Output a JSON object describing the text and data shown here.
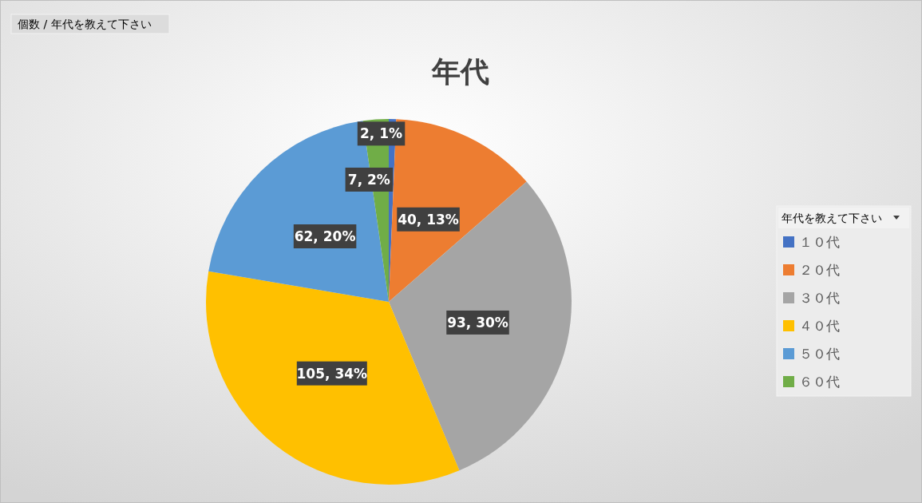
{
  "chart_data": {
    "type": "pie",
    "title": "年代",
    "annotations": [
      "個数 / 年代を教えて下さい"
    ],
    "legend_title": "年代を教えて下さい",
    "legend": "right",
    "categories": [
      "１０代",
      "２０代",
      "３０代",
      "４０代",
      "５０代",
      "６０代"
    ],
    "values": [
      2,
      40,
      93,
      105,
      62,
      7
    ],
    "value_labels": [
      "2, 1%",
      "40, 13%",
      "93, 30%",
      "105, 34%",
      "62, 20%",
      "7, 2%"
    ],
    "colors": [
      "#4472c4",
      "#ed7d31",
      "#a5a5a5",
      "#ffc000",
      "#5b9bd5",
      "#70ad47"
    ]
  }
}
